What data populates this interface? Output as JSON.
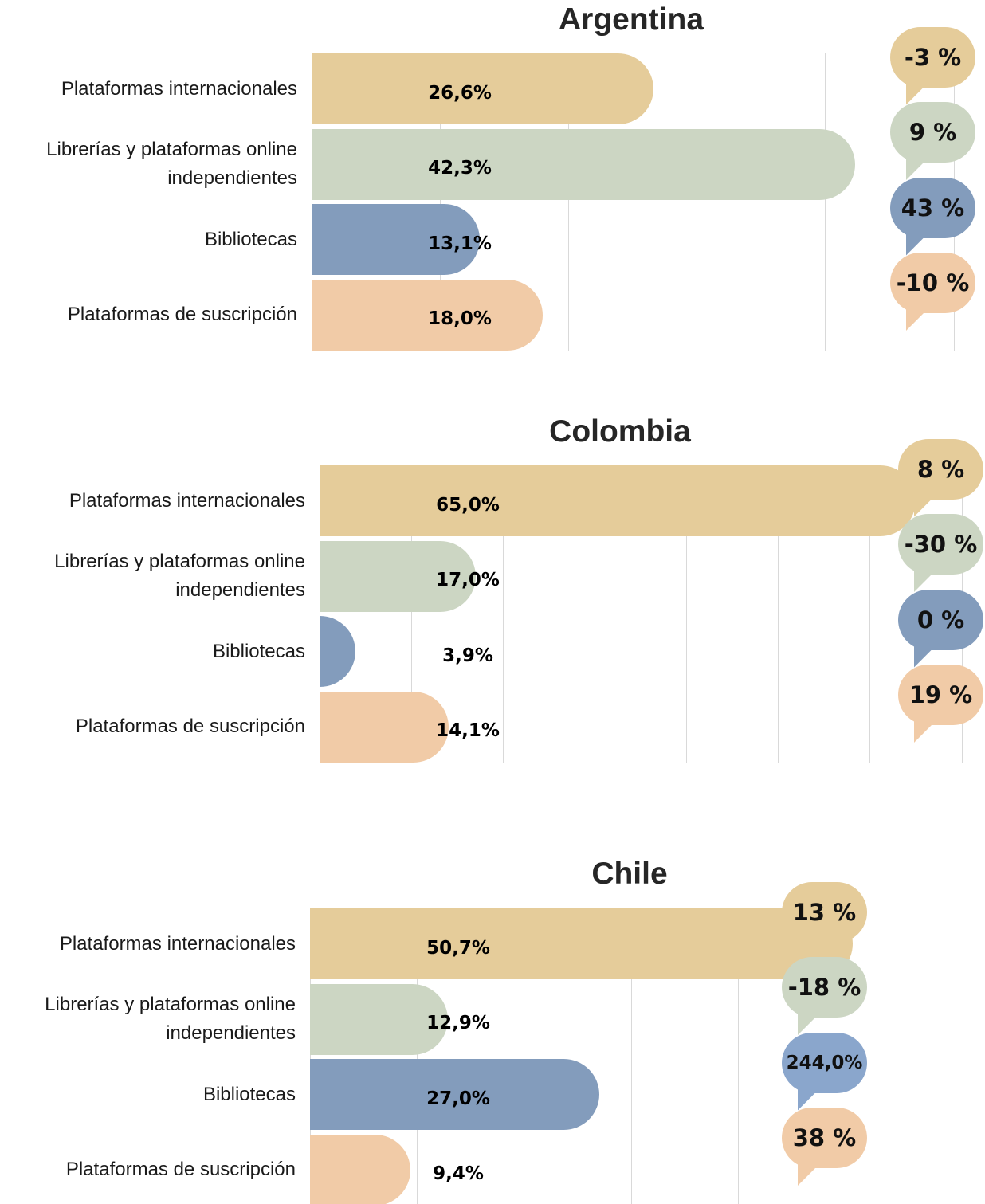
{
  "chart_data": [
    {
      "type": "bar",
      "orientation": "horizontal",
      "title": "Argentina",
      "categories": [
        "Plataformas internacionales",
        "Librerías y plataformas online independientes",
        "Bibliotecas",
        "Plataformas de suscripción"
      ],
      "values": [
        26.6,
        42.3,
        13.1,
        18.0
      ],
      "value_labels": [
        "26,6%",
        "42,3%",
        "13,1%",
        "18,0%"
      ],
      "colors": [
        "#e5cc9a",
        "#ccd6c3",
        "#839cbc",
        "#f1cba7"
      ],
      "changes": [
        -3,
        9,
        43,
        -10
      ],
      "change_labels": [
        "-3 %",
        "9 %",
        "43 %",
        "-10 %"
      ],
      "change_colors": [
        "#e5cc9a",
        "#ccd6c3",
        "#839cbc",
        "#f1cba7"
      ],
      "xlim": [
        0,
        50
      ],
      "xticks": [
        0,
        10,
        20,
        30,
        40,
        50
      ],
      "grid": true
    },
    {
      "type": "bar",
      "orientation": "horizontal",
      "title": "Colombia",
      "categories": [
        "Plataformas internacionales",
        "Librerías y plataformas online independientes",
        "Bibliotecas",
        "Plataformas de suscripción"
      ],
      "values": [
        65.0,
        17.0,
        3.9,
        14.1
      ],
      "value_labels": [
        "65,0%",
        "17,0%",
        "3,9%",
        "14,1%"
      ],
      "colors": [
        "#e5cc9a",
        "#ccd6c3",
        "#839cbc",
        "#f1cba7"
      ],
      "changes": [
        8,
        -30,
        0,
        19
      ],
      "change_labels": [
        "8 %",
        "-30 %",
        "0 %",
        "19 %"
      ],
      "change_colors": [
        "#e5cc9a",
        "#ccd6c3",
        "#839cbc",
        "#f1cba7"
      ],
      "xlim": [
        0,
        70
      ],
      "xticks": [
        0,
        10,
        20,
        30,
        40,
        50,
        60,
        70
      ],
      "grid": true
    },
    {
      "type": "bar",
      "orientation": "horizontal",
      "title": "Chile",
      "categories": [
        "Plataformas internacionales",
        "Librerías y plataformas online independientes",
        "Bibliotecas",
        "Plataformas de suscripción"
      ],
      "values": [
        50.7,
        12.9,
        27.0,
        9.4
      ],
      "value_labels": [
        "50,7%",
        "12,9%",
        "27,0%",
        "9,4%"
      ],
      "colors": [
        "#e5cc9a",
        "#ccd6c3",
        "#839cbc",
        "#f1cba7"
      ],
      "changes": [
        13,
        -18,
        244.0,
        38
      ],
      "change_labels": [
        "13 %",
        "-18 %",
        "244,0%",
        "38 %"
      ],
      "change_colors": [
        "#e5cc9a",
        "#ccd6c3",
        "#8aa6cc",
        "#f1cba7"
      ],
      "xlim": [
        0,
        50
      ],
      "xticks": [
        0,
        10,
        20,
        30,
        40,
        50
      ],
      "grid": true
    }
  ]
}
